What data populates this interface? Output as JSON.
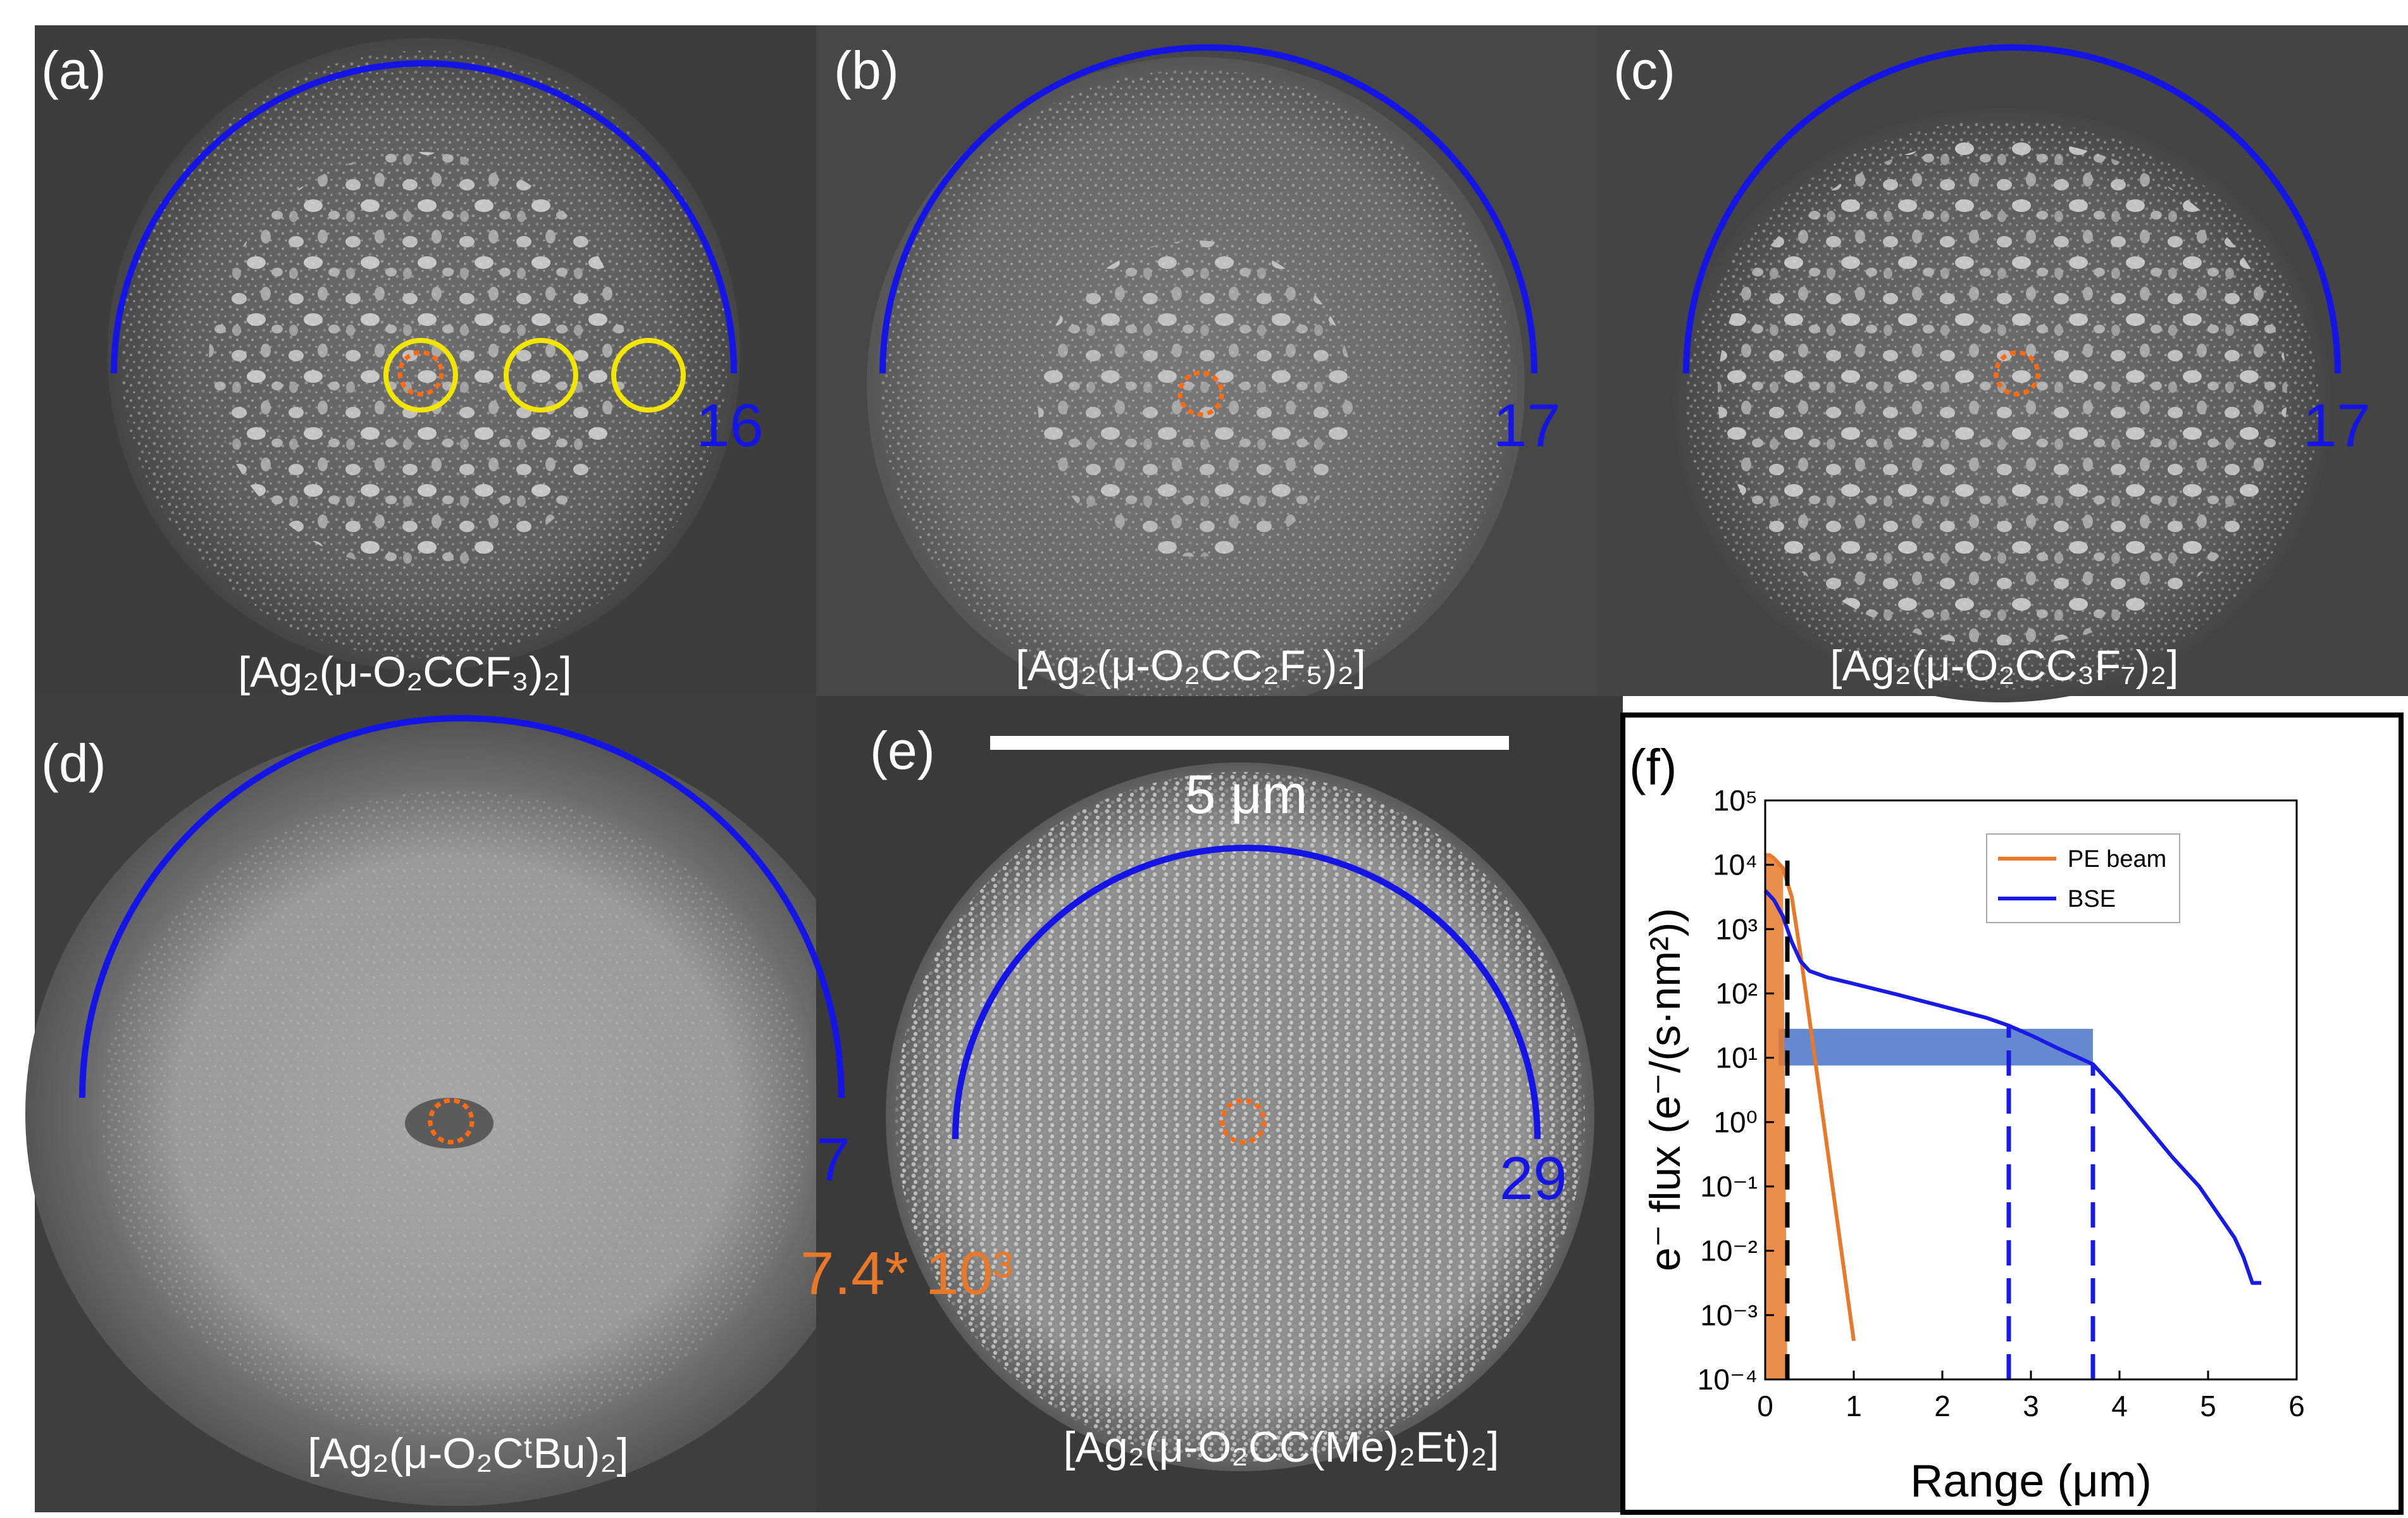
{
  "panels": [
    {
      "label": "(a)",
      "compound": "[Ag₂(μ-O₂CCF₃)₂]",
      "radius_label": "16"
    },
    {
      "label": "(b)",
      "compound": "[Ag₂(μ-O₂CC₂F₅)₂]",
      "radius_label": "17"
    },
    {
      "label": "(c)",
      "compound": "[Ag₂(μ-O₂CC₃F₇)₂]",
      "radius_label": "17"
    },
    {
      "label": "(d)",
      "compound": "[Ag₂(μ-O₂CᵗBu)₂]",
      "radius_label": "7"
    },
    {
      "label": "(e)",
      "compound": "[Ag₂(μ-O₂CC(Me)₂Et)₂]",
      "radius_label": "29"
    }
  ],
  "scale_bar": {
    "label": "5 μm"
  },
  "annotation": {
    "text": "7.4* 10³",
    "color": "#e8792b"
  },
  "colors": {
    "arc": "#1414e6",
    "beam_spot": "#ff6a13",
    "circle": "#f2e600",
    "bse": "#1a1ae6",
    "pe": "#e8792b",
    "band": "#4a74c9"
  },
  "chart_data": {
    "panel_label": "(f)",
    "type": "line",
    "xlabel": "Range (μm)",
    "ylabel": "e⁻ flux (e⁻/(s·nm²))",
    "yscale": "log",
    "xlim": [
      0,
      6
    ],
    "ylim_exp": [
      -4,
      5
    ],
    "xticks": [
      "0",
      "1",
      "2",
      "3",
      "4",
      "5",
      "6"
    ],
    "yticks": [
      "10⁻⁴",
      "10⁻³",
      "10⁻²",
      "10⁻¹",
      "10⁰",
      "10¹",
      "10²",
      "10³",
      "10⁴",
      "10⁵"
    ],
    "legend": {
      "position": "top-right",
      "entries": [
        "PE beam",
        "BSE"
      ]
    },
    "series": [
      {
        "name": "PE beam",
        "x": [
          0,
          0.05,
          0.1,
          0.2,
          0.3,
          0.4,
          0.5,
          0.6,
          0.7,
          0.8,
          0.9,
          1.0
        ],
        "log10_y": [
          4.15,
          4.15,
          4.1,
          3.95,
          3.5,
          2.6,
          1.6,
          0.6,
          -0.4,
          -1.4,
          -2.4,
          -3.4
        ]
      },
      {
        "name": "BSE",
        "x": [
          0,
          0.1,
          0.2,
          0.3,
          0.4,
          0.5,
          0.7,
          1.0,
          1.5,
          2.0,
          2.5,
          2.75,
          3.0,
          3.3,
          3.7,
          4.0,
          4.3,
          4.6,
          4.9,
          5.1,
          5.3,
          5.4,
          5.5,
          5.6
        ],
        "log10_y": [
          3.6,
          3.45,
          3.2,
          2.8,
          2.5,
          2.35,
          2.25,
          2.15,
          1.98,
          1.8,
          1.62,
          1.5,
          1.35,
          1.15,
          0.9,
          0.45,
          -0.05,
          -0.55,
          -1.0,
          -1.4,
          -1.8,
          -2.1,
          -2.5,
          -2.5
        ]
      }
    ],
    "shaded_band": {
      "log10_y_range": [
        0.88,
        1.45
      ],
      "x_range": [
        0.15,
        3.7
      ]
    },
    "pe_shaded_x_range": [
      0,
      0.25
    ],
    "vlines": [
      {
        "x": 0.25,
        "color": "#000000",
        "style": "dashed"
      },
      {
        "x": 2.75,
        "color": "#1a1ae6",
        "style": "dashed"
      },
      {
        "x": 3.7,
        "color": "#1a1ae6",
        "style": "dashed"
      }
    ]
  }
}
